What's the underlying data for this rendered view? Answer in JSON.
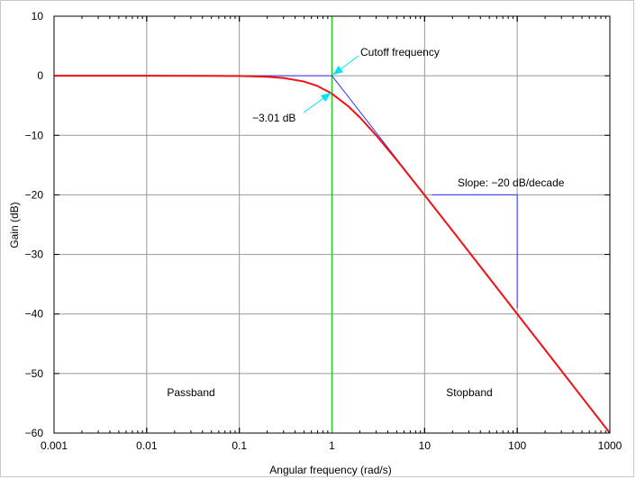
{
  "chart_data": {
    "type": "line",
    "x_scale": "log",
    "xlim": [
      0.001,
      1000
    ],
    "ylim": [
      -60,
      10
    ],
    "xlabel": "Angular frequency (rad/s)",
    "ylabel": "Gain (dB)",
    "x_ticks": [
      "0.001",
      "0.01",
      "0.1",
      "1",
      "10",
      "100",
      "1000"
    ],
    "y_ticks": [
      "10",
      "0",
      "−10",
      "−20",
      "−30",
      "−40",
      "−50",
      "−60"
    ],
    "grid": true,
    "series": [
      {
        "kind": "frequency-response",
        "color": "#ee1111",
        "x": [
          0.001,
          0.01,
          0.05,
          0.1,
          0.2,
          0.3,
          0.5,
          0.7,
          1,
          1.5,
          2,
          3,
          5,
          7,
          10,
          20,
          50,
          100,
          200,
          500,
          1000
        ],
        "y": [
          0,
          0,
          -0.01,
          -0.04,
          -0.17,
          -0.37,
          -0.97,
          -1.73,
          -3.01,
          -5.12,
          -6.99,
          -10.0,
          -14.15,
          -17.0,
          -20.04,
          -26.02,
          -33.98,
          -40.0,
          -46.02,
          -53.98,
          -60.0
        ]
      },
      {
        "kind": "asymptote",
        "color": "#3333ff",
        "x": [
          0.001,
          1,
          1000
        ],
        "y": [
          0,
          0,
          -60
        ]
      }
    ],
    "reference_lines": [
      {
        "kind": "cutoff",
        "axis": "x",
        "value": 1,
        "color": "#22cc22"
      }
    ],
    "slope_marker": {
      "x": [
        12,
        100,
        100
      ],
      "y": [
        -20,
        -20,
        -39
      ],
      "color": "#3333ff"
    },
    "annotations": {
      "cutoff": "Cutoff frequency",
      "minus3db": "−3.01 dB",
      "slope": "Slope: −20 dB/decade",
      "passband": "Passband",
      "stopband": "Stopband"
    },
    "annotation_color": "#00e5ee"
  }
}
